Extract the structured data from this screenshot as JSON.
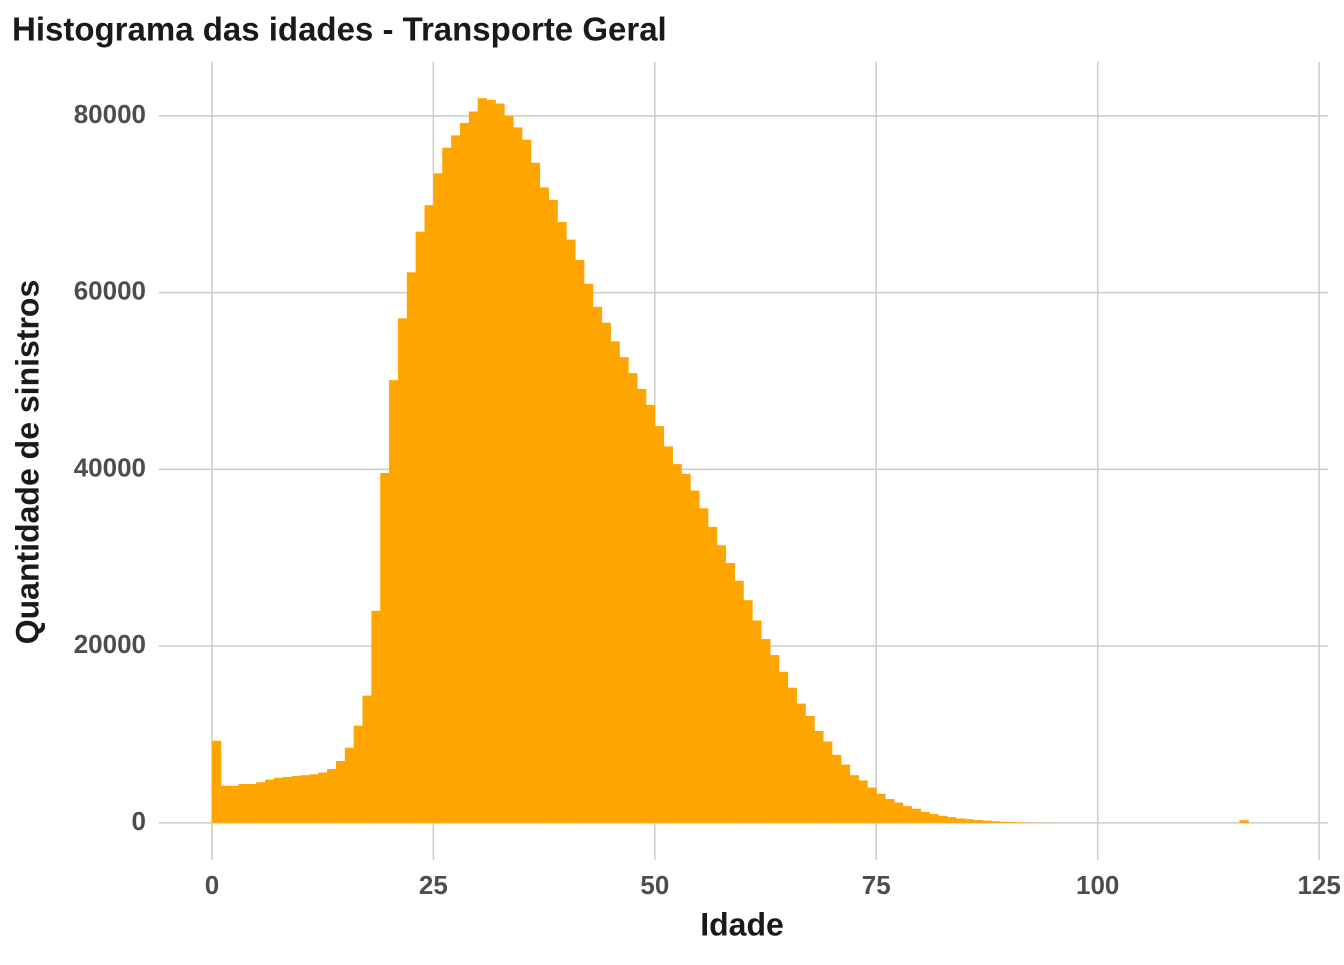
{
  "chart_data": {
    "type": "histogram",
    "title": "Histograma das idades - Transporte Geral",
    "x_label": "Idade",
    "y_label": "Quantidade de sinistros",
    "color": "#FFA500",
    "grid": true,
    "bins": [
      0,
      1,
      2,
      3,
      4,
      5,
      6,
      7,
      8,
      9,
      10,
      11,
      12,
      13,
      14,
      15,
      16,
      17,
      18,
      19,
      20,
      21,
      22,
      23,
      24,
      25,
      26,
      27,
      28,
      29,
      30,
      31,
      32,
      33,
      34,
      35,
      36,
      37,
      38,
      39,
      40,
      41,
      42,
      43,
      44,
      45,
      46,
      47,
      48,
      49,
      50,
      51,
      52,
      53,
      54,
      55,
      56,
      57,
      58,
      59,
      60,
      61,
      62,
      63,
      64,
      65,
      66,
      67,
      68,
      69,
      70,
      71,
      72,
      73,
      74,
      75,
      76,
      77,
      78,
      79,
      80,
      81,
      82,
      83,
      84,
      85,
      86,
      87,
      88,
      89,
      90,
      91,
      92,
      93,
      94,
      95,
      96,
      97,
      98,
      99,
      100,
      101,
      102,
      103,
      104,
      105,
      106,
      107,
      108,
      109,
      110,
      111,
      112,
      113,
      114,
      115,
      116,
      117
    ],
    "counts": [
      9300,
      4200,
      4200,
      4400,
      4400,
      4600,
      4900,
      5100,
      5200,
      5300,
      5400,
      5500,
      5700,
      6100,
      7000,
      8500,
      11000,
      14400,
      24000,
      39600,
      50100,
      57100,
      62300,
      66900,
      69900,
      73500,
      76400,
      77800,
      79200,
      80500,
      82000,
      81800,
      81400,
      80000,
      78700,
      77300,
      74700,
      71900,
      70500,
      68000,
      66000,
      63700,
      61000,
      58400,
      56600,
      54500,
      52700,
      50900,
      49100,
      47300,
      44900,
      42600,
      40600,
      39500,
      37600,
      35600,
      33500,
      31400,
      29400,
      27400,
      25200,
      22900,
      20800,
      19000,
      17100,
      15300,
      13500,
      12100,
      10400,
      9200,
      7700,
      6600,
      5400,
      4800,
      4000,
      3300,
      2700,
      2300,
      1900,
      1600,
      1250,
      1000,
      800,
      650,
      500,
      420,
      320,
      250,
      180,
      120,
      80,
      50,
      30,
      20,
      10,
      0,
      0,
      0,
      0,
      0,
      0,
      0,
      0,
      0,
      0,
      0,
      0,
      0,
      0,
      0,
      0,
      0,
      0,
      0,
      0,
      0,
      300
    ],
    "xlim": [
      -6,
      126
    ],
    "ylim": [
      -4200,
      86100
    ],
    "xticks": [
      0,
      25,
      50,
      75,
      100,
      125
    ],
    "yticks": [
      0,
      20000,
      40000,
      60000,
      80000
    ]
  }
}
